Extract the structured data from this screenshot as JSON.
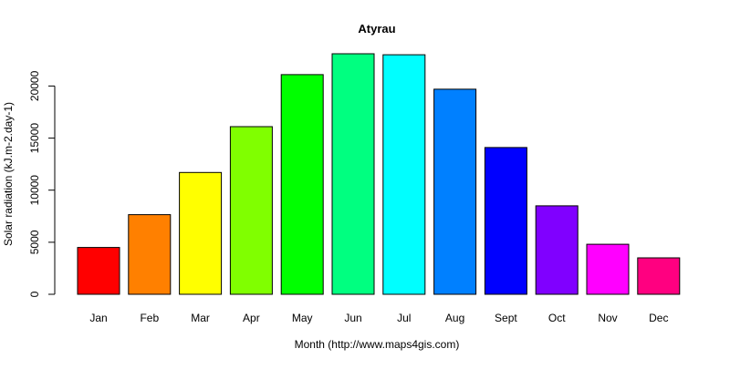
{
  "chart_data": {
    "type": "bar",
    "title": "Atyrau",
    "xlabel": "Month (http://www.maps4gis.com)",
    "ylabel": "Solar radiation (kJ.m-2.day-1)",
    "categories": [
      "Jan",
      "Feb",
      "Mar",
      "Apr",
      "May",
      "Jun",
      "Jul",
      "Aug",
      "Sept",
      "Oct",
      "Nov",
      "Dec"
    ],
    "values": [
      4500,
      7650,
      11700,
      16100,
      21100,
      23100,
      23000,
      19700,
      14100,
      8500,
      4800,
      3500
    ],
    "colors": [
      "#ff0000",
      "#ff8000",
      "#ffff00",
      "#80ff00",
      "#00ff00",
      "#00ff80",
      "#00ffff",
      "#0080ff",
      "#0000ff",
      "#8000ff",
      "#ff00ff",
      "#ff0080"
    ],
    "yticks": [
      0,
      5000,
      10000,
      15000,
      20000
    ],
    "ylim": [
      0,
      23100
    ],
    "grid": false,
    "legend": "none"
  }
}
